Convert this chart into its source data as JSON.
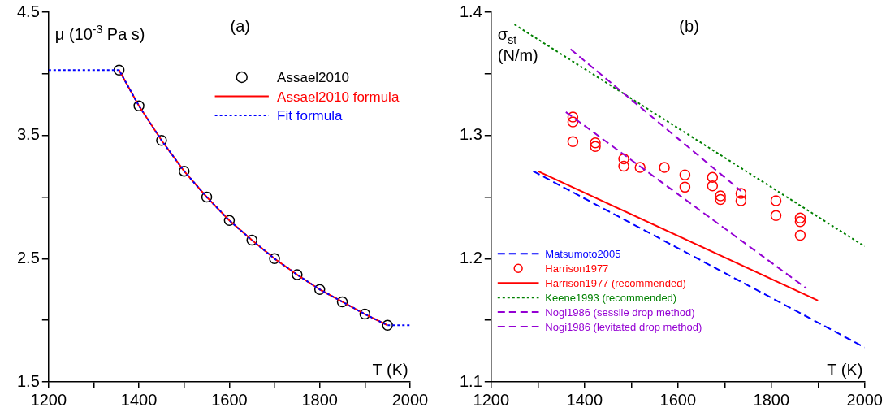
{
  "chart_data": [
    {
      "type": "line",
      "title": "(a)",
      "xlabel": "T (K)",
      "ylabel": "μ (10$^{-3}$ Pa s)",
      "xlim": [
        1200,
        2000
      ],
      "ylim": [
        1.5,
        4.5
      ],
      "xticks": [
        1200,
        {
          "value": 1300,
          "label": null
        },
        1400,
        {
          "value": 1500,
          "label": null
        },
        1600,
        {
          "value": 1700,
          "label": null
        },
        1800,
        {
          "value": 1900,
          "label": null
        },
        2000
      ],
      "yticks": [
        1.5,
        {
          "value": 2,
          "label": null
        },
        2.5,
        {
          "value": 3,
          "label": null
        },
        3.5,
        {
          "value": 4,
          "label": null
        },
        4.5
      ],
      "grid": false,
      "legend": "top right",
      "series": [
        {
          "name": "Assael2010",
          "type": "scatter",
          "marker": "circle",
          "color": "#000000",
          "x": [
            1356,
            1400,
            1450,
            1500,
            1550,
            1600,
            1650,
            1700,
            1750,
            1800,
            1850,
            1900,
            1950
          ],
          "values": [
            4.03,
            3.74,
            3.46,
            3.21,
            3.0,
            2.81,
            2.65,
            2.5,
            2.37,
            2.25,
            2.15,
            2.05,
            1.96
          ]
        },
        {
          "name": "Assael2010 formula",
          "type": "line",
          "line_style": "solid",
          "color": "#ff0000",
          "x": [
            1356,
            1400,
            1450,
            1500,
            1550,
            1600,
            1650,
            1700,
            1750,
            1800,
            1850,
            1900,
            1950
          ],
          "values": [
            4.03,
            3.74,
            3.46,
            3.21,
            3.0,
            2.81,
            2.65,
            2.5,
            2.37,
            2.25,
            2.15,
            2.05,
            1.96
          ]
        },
        {
          "name": "Fit formula",
          "type": "line",
          "line_style": "dotted",
          "color": "#0000ff",
          "x": [
            1200,
            1356,
            1400,
            1450,
            1500,
            1550,
            1600,
            1650,
            1700,
            1750,
            1800,
            1850,
            1900,
            1950,
            2000
          ],
          "values": [
            4.03,
            4.03,
            3.74,
            3.46,
            3.21,
            3.0,
            2.81,
            2.65,
            2.5,
            2.37,
            2.25,
            2.15,
            2.05,
            1.96,
            1.96
          ]
        }
      ]
    },
    {
      "type": "line",
      "title": "(b)",
      "xlabel": "T (K)",
      "ylabel": "σ$_{st}$ (N/m)",
      "xlim": [
        1200,
        2000
      ],
      "ylim": [
        1.1,
        1.4
      ],
      "xticks": [
        1200,
        {
          "value": 1300,
          "label": null
        },
        1400,
        {
          "value": 1500,
          "label": null
        },
        1600,
        {
          "value": 1700,
          "label": null
        },
        1800,
        {
          "value": 1900,
          "label": null
        },
        2000
      ],
      "yticks": [
        1.1,
        {
          "value": 1.15,
          "label": null
        },
        1.2,
        {
          "value": 1.25,
          "label": null
        },
        1.3,
        {
          "value": 1.35,
          "label": null
        },
        1.4
      ],
      "grid": false,
      "legend": "bottom left",
      "series": [
        {
          "name": "Matsumoto2005",
          "type": "line",
          "line_style": "dashed",
          "color": "#0000ff",
          "x": [
            1290,
            2000
          ],
          "values": [
            1.271,
            1.128
          ]
        },
        {
          "name": "Harrison1977",
          "type": "scatter",
          "marker": "circle",
          "color": "#ff0000",
          "x": [
            1375,
            1375,
            1375,
            1423,
            1423,
            1484,
            1484,
            1519,
            1571,
            1615,
            1615,
            1674,
            1674,
            1691,
            1691,
            1735,
            1735,
            1810,
            1810,
            1862,
            1862,
            1862
          ],
          "values": [
            1.315,
            1.311,
            1.295,
            1.294,
            1.291,
            1.281,
            1.275,
            1.274,
            1.274,
            1.268,
            1.258,
            1.266,
            1.259,
            1.251,
            1.248,
            1.253,
            1.247,
            1.247,
            1.235,
            1.233,
            1.23,
            1.219
          ]
        },
        {
          "name": "Harrison1977 (recommended)",
          "type": "line",
          "line_style": "solid",
          "color": "#ff0000",
          "x": [
            1300,
            1900
          ],
          "values": [
            1.271,
            1.166
          ]
        },
        {
          "name": "Keene1993 (recommended)",
          "type": "line",
          "line_style": "dotted",
          "color": "#008000",
          "x": [
            1250,
            2000
          ],
          "values": [
            1.39,
            1.21
          ]
        },
        {
          "name": "Nogi1986 (sessile drop method)",
          "type": "line",
          "line_style": "dashed",
          "color": "#9400d3",
          "x": [
            1360,
            1875
          ],
          "values": [
            1.319,
            1.176
          ]
        },
        {
          "name": "Nogi1986 (levitated drop method)",
          "type": "line",
          "line_style": "dashed",
          "color": "#9400d3",
          "x": [
            1370,
            1735
          ],
          "values": [
            1.37,
            1.255
          ]
        }
      ]
    }
  ]
}
